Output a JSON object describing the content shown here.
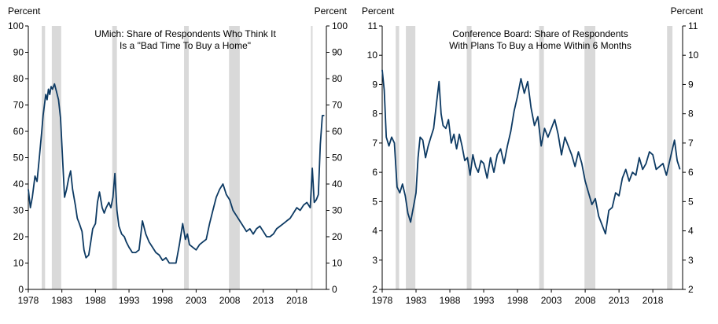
{
  "chart_data": [
    {
      "type": "line",
      "title_lines": [
        "UMich: Share of Respondents  Who Think  It",
        "Is a \"Bad Time To Buy a Home\""
      ],
      "left_unit": "Percent",
      "right_unit": "Percent",
      "ylim": [
        0,
        100
      ],
      "yticks": [
        "0",
        "10",
        "20",
        "30",
        "40",
        "50",
        "60",
        "70",
        "80",
        "90",
        "100"
      ],
      "xlim": [
        1978,
        2022.4
      ],
      "xticks": [
        "1978",
        "1983",
        "1988",
        "1993",
        "1998",
        "2003",
        "2008",
        "2013",
        "2018"
      ],
      "line_color": "#0d3a63",
      "recession_color": "#d9d9d9",
      "recessions": [
        [
          1980.0,
          1980.5
        ],
        [
          1981.5,
          1982.9
        ],
        [
          1990.5,
          1991.2
        ],
        [
          2001.2,
          2001.9
        ],
        [
          2007.9,
          2009.5
        ],
        [
          2020.1,
          2020.35
        ]
      ],
      "series": [
        {
          "name": "Bad Time To Buy a Home",
          "x": [
            1978.0,
            1978.3,
            1978.6,
            1979.0,
            1979.3,
            1979.6,
            1980.0,
            1980.2,
            1980.4,
            1980.6,
            1980.8,
            1981.0,
            1981.2,
            1981.4,
            1981.6,
            1981.9,
            1982.2,
            1982.5,
            1982.8,
            1983.1,
            1983.4,
            1983.7,
            1984.0,
            1984.3,
            1984.6,
            1985.0,
            1985.3,
            1985.6,
            1986.0,
            1986.3,
            1986.6,
            1987.0,
            1987.3,
            1987.6,
            1988.0,
            1988.3,
            1988.6,
            1989.0,
            1989.3,
            1989.6,
            1990.0,
            1990.3,
            1990.6,
            1990.9,
            1991.2,
            1991.5,
            1991.9,
            1992.3,
            1992.6,
            1993.0,
            1993.5,
            1994.0,
            1994.5,
            1995.0,
            1995.5,
            1996.0,
            1996.5,
            1997.0,
            1997.5,
            1998.0,
            1998.5,
            1999.0,
            1999.5,
            2000.0,
            2000.5,
            2001.0,
            2001.4,
            2001.7,
            2002.0,
            2002.5,
            2003.0,
            2003.5,
            2004.0,
            2004.5,
            2005.0,
            2005.5,
            2006.0,
            2006.5,
            2007.0,
            2007.5,
            2008.0,
            2008.5,
            2009.0,
            2009.5,
            2010.0,
            2010.5,
            2011.0,
            2011.5,
            2012.0,
            2012.5,
            2013.0,
            2013.5,
            2014.0,
            2014.5,
            2015.0,
            2015.5,
            2016.0,
            2016.5,
            2017.0,
            2017.5,
            2018.0,
            2018.5,
            2019.0,
            2019.5,
            2020.0,
            2020.3,
            2020.6,
            2020.9,
            2021.2,
            2021.5,
            2021.8,
            2022.1
          ],
          "values": [
            38,
            31,
            35,
            43,
            41,
            49,
            60,
            66,
            70,
            74,
            72,
            76,
            74,
            77,
            76,
            78,
            75,
            72,
            65,
            50,
            35,
            38,
            42,
            45,
            38,
            32,
            27,
            25,
            22,
            15,
            12,
            13,
            18,
            23,
            25,
            33,
            37,
            31,
            29,
            31,
            33,
            31,
            35,
            44,
            30,
            24,
            21,
            20,
            18,
            16,
            14,
            14,
            15,
            26,
            21,
            18,
            16,
            14,
            13,
            11,
            12,
            10,
            10,
            10,
            17,
            25,
            19,
            21,
            17,
            16,
            15,
            17,
            18,
            19,
            25,
            30,
            35,
            38,
            40,
            36,
            34,
            30,
            28,
            26,
            24,
            22,
            23,
            21,
            23,
            24,
            22,
            20,
            20,
            21,
            23,
            24,
            25,
            26,
            27,
            29,
            31,
            30,
            32,
            33,
            31,
            46,
            33,
            34,
            36,
            55,
            66,
            66
          ]
        }
      ]
    },
    {
      "type": "line",
      "title_lines": [
        "Conference  Board: Share of Respondents",
        "With Plans To  Buy a Home  Within 6 Months"
      ],
      "left_unit": "Percent",
      "right_unit": "Percent",
      "ylim": [
        2,
        11
      ],
      "yticks": [
        "2",
        "3",
        "4",
        "5",
        "6",
        "7",
        "8",
        "9",
        "10",
        "11"
      ],
      "xlim": [
        1978,
        2022.4
      ],
      "xticks": [
        "1978",
        "1983",
        "1988",
        "1993",
        "1998",
        "2003",
        "2008",
        "2013",
        "2018"
      ],
      "line_color": "#0d3a63",
      "recession_color": "#d9d9d9",
      "recessions": [
        [
          1980.0,
          1980.5
        ],
        [
          1981.5,
          1982.9
        ],
        [
          1990.5,
          1991.2
        ],
        [
          2001.2,
          2001.9
        ],
        [
          2007.9,
          2009.5
        ],
        [
          2020.1,
          2020.9
        ]
      ],
      "series": [
        {
          "name": "Plans To Buy a Home Within 6 Months",
          "x": [
            1978.0,
            1978.3,
            1978.6,
            1979.0,
            1979.4,
            1979.8,
            1980.2,
            1980.6,
            1981.0,
            1981.4,
            1981.8,
            1982.2,
            1982.6,
            1983.0,
            1983.3,
            1983.6,
            1984.0,
            1984.4,
            1984.8,
            1985.2,
            1985.6,
            1986.0,
            1986.4,
            1986.7,
            1987.0,
            1987.4,
            1987.8,
            1988.2,
            1988.6,
            1989.0,
            1989.4,
            1989.8,
            1990.2,
            1990.6,
            1991.0,
            1991.4,
            1991.8,
            1992.2,
            1992.6,
            1993.0,
            1993.5,
            1994.0,
            1994.5,
            1995.0,
            1995.5,
            1996.0,
            1996.5,
            1997.0,
            1997.5,
            1998.0,
            1998.5,
            1999.0,
            1999.5,
            2000.0,
            2000.5,
            2001.0,
            2001.5,
            2002.0,
            2002.5,
            2003.0,
            2003.5,
            2004.0,
            2004.5,
            2005.0,
            2005.5,
            2006.0,
            2006.5,
            2007.0,
            2007.5,
            2008.0,
            2008.5,
            2009.0,
            2009.5,
            2010.0,
            2010.5,
            2011.0,
            2011.5,
            2012.0,
            2012.5,
            2013.0,
            2013.5,
            2014.0,
            2014.5,
            2015.0,
            2015.5,
            2016.0,
            2016.5,
            2017.0,
            2017.5,
            2018.0,
            2018.5,
            2019.0,
            2019.5,
            2020.0,
            2020.4,
            2020.8,
            2021.2,
            2021.6,
            2022.0
          ],
          "values": [
            9.5,
            8.8,
            7.2,
            6.9,
            7.2,
            7.0,
            5.5,
            5.3,
            5.6,
            5.2,
            4.6,
            4.3,
            4.8,
            5.3,
            6.5,
            7.2,
            7.1,
            6.5,
            6.9,
            7.2,
            7.5,
            8.3,
            9.1,
            8.0,
            7.6,
            7.5,
            7.8,
            7.0,
            7.3,
            6.8,
            7.3,
            6.9,
            6.4,
            6.5,
            5.9,
            6.6,
            6.2,
            6.0,
            6.4,
            6.3,
            5.8,
            6.5,
            6.0,
            6.6,
            6.8,
            6.3,
            6.9,
            7.4,
            8.1,
            8.6,
            9.2,
            8.7,
            9.1,
            8.2,
            7.6,
            7.9,
            6.9,
            7.5,
            7.2,
            7.5,
            7.8,
            7.3,
            6.6,
            7.2,
            6.9,
            6.6,
            6.2,
            6.7,
            6.3,
            5.7,
            5.3,
            4.9,
            5.1,
            4.5,
            4.2,
            3.9,
            4.7,
            4.8,
            5.3,
            5.2,
            5.8,
            6.1,
            5.7,
            6.0,
            5.9,
            6.5,
            6.1,
            6.3,
            6.7,
            6.6,
            6.1,
            6.2,
            6.3,
            5.9,
            6.3,
            6.7,
            7.1,
            6.4,
            6.1
          ]
        }
      ]
    }
  ]
}
